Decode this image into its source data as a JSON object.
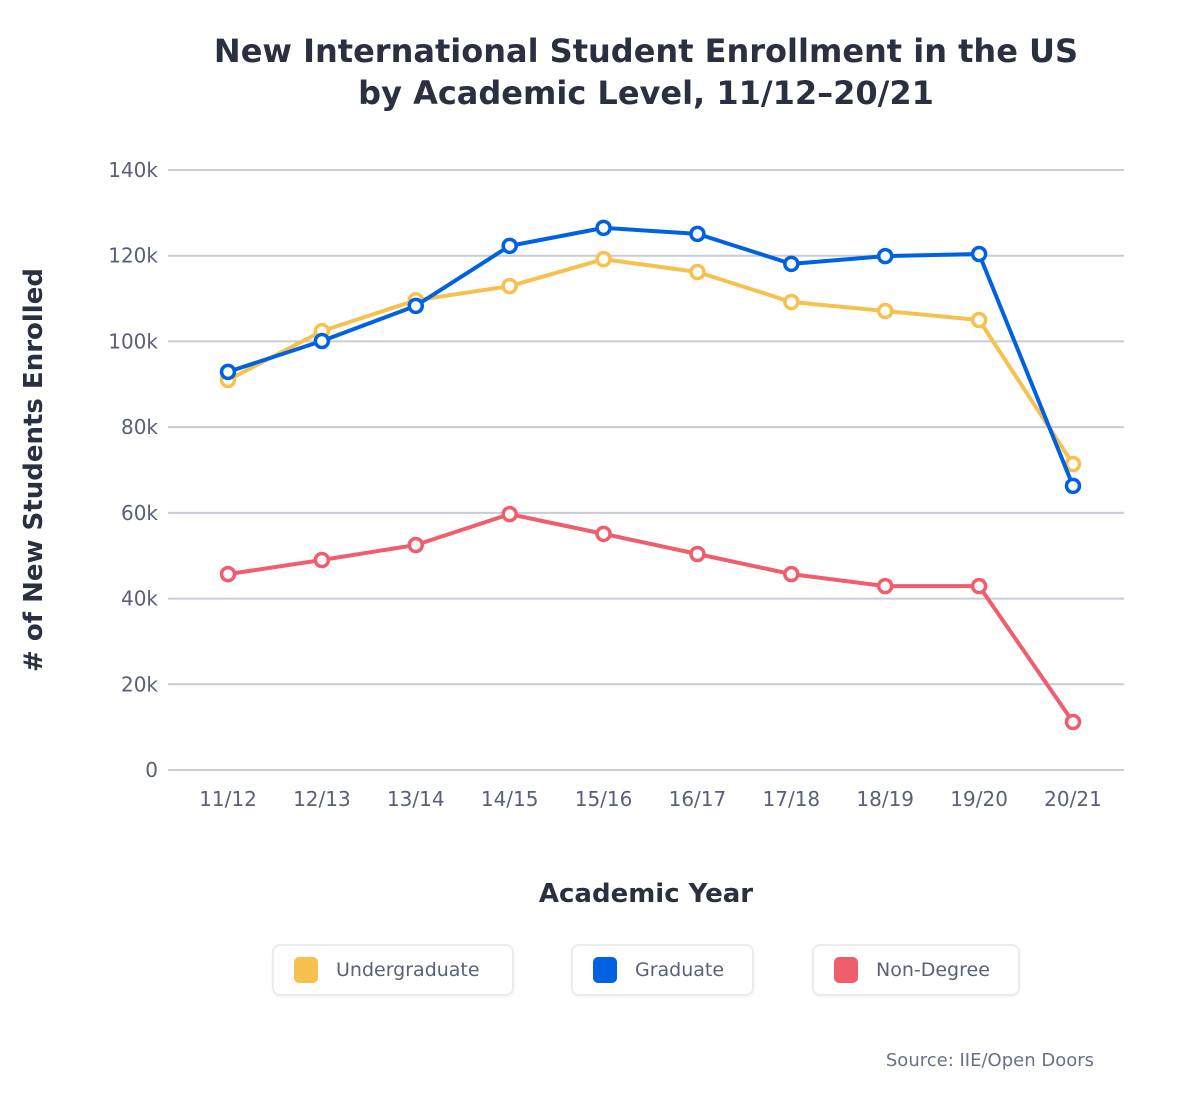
{
  "chart_data": {
    "type": "line",
    "title": "New International Student Enrollment in the US",
    "subtitle": "by Academic Level, 11/12–20/21",
    "xlabel": "Academic Year",
    "ylabel": "# of New Students Enrolled",
    "categories": [
      "11/12",
      "12/13",
      "13/14",
      "14/15",
      "15/16",
      "16/17",
      "17/18",
      "18/19",
      "19/20",
      "20/21"
    ],
    "ylim": [
      0,
      140000
    ],
    "yticks": [
      0,
      20000,
      40000,
      60000,
      80000,
      100000,
      120000,
      140000
    ],
    "ytick_labels": [
      "0",
      "20k",
      "40k",
      "60k",
      "80k",
      "100k",
      "120k",
      "140k"
    ],
    "grid": "horizontal",
    "legend_position": "bottom",
    "series": [
      {
        "name": "Undergraduate",
        "color": "#f6c14f",
        "values": [
          91000,
          102400,
          109600,
          112900,
          119200,
          116200,
          109200,
          107100,
          105000,
          71400
        ]
      },
      {
        "name": "Graduate",
        "color": "#0062e0",
        "values": [
          92900,
          100100,
          108300,
          122300,
          126500,
          125100,
          118100,
          119900,
          120400,
          66300
        ]
      },
      {
        "name": "Non-Degree",
        "color": "#f05e6e",
        "values": [
          45700,
          49000,
          52500,
          59700,
          55100,
          50400,
          45700,
          42900,
          42900,
          11200
        ]
      }
    ],
    "source": "Source: IIE/Open Doors"
  }
}
